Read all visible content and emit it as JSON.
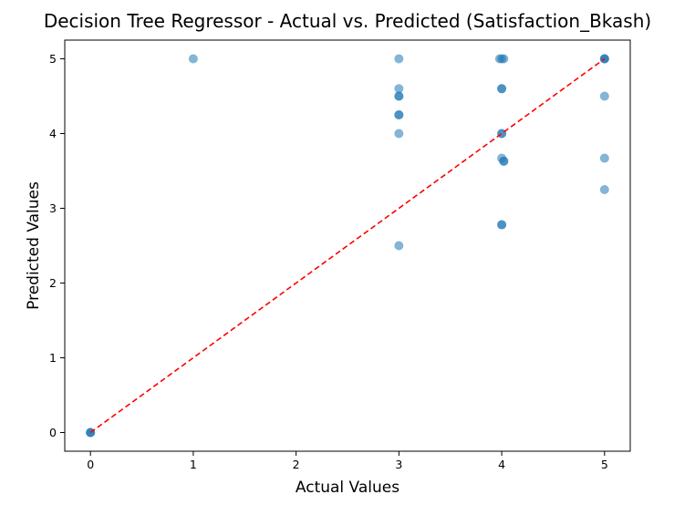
{
  "chart_data": {
    "type": "scatter",
    "title": "Decision Tree Regressor - Actual vs. Predicted (Satisfaction_Bkash)",
    "xlabel": "Actual Values",
    "ylabel": "Predicted Values",
    "xlim": [
      -0.25,
      5.25
    ],
    "ylim": [
      -0.25,
      5.25
    ],
    "xticks": [
      "0",
      "1",
      "2",
      "3",
      "4",
      "5"
    ],
    "yticks": [
      "0",
      "1",
      "2",
      "3",
      "4",
      "5"
    ],
    "grid": false,
    "points": [
      {
        "x": 0,
        "y": 0
      },
      {
        "x": 0,
        "y": 0
      },
      {
        "x": 0,
        "y": 0
      },
      {
        "x": 1,
        "y": 5
      },
      {
        "x": 3,
        "y": 5
      },
      {
        "x": 3,
        "y": 4.6
      },
      {
        "x": 3,
        "y": 4.5
      },
      {
        "x": 3,
        "y": 4.5
      },
      {
        "x": 3,
        "y": 4.25
      },
      {
        "x": 3,
        "y": 4.25
      },
      {
        "x": 3,
        "y": 4
      },
      {
        "x": 3,
        "y": 2.5
      },
      {
        "x": 3.98,
        "y": 5
      },
      {
        "x": 4.02,
        "y": 5
      },
      {
        "x": 4,
        "y": 5
      },
      {
        "x": 4,
        "y": 4.6
      },
      {
        "x": 4,
        "y": 4.6
      },
      {
        "x": 4,
        "y": 4
      },
      {
        "x": 4,
        "y": 4
      },
      {
        "x": 4,
        "y": 3.67
      },
      {
        "x": 4.02,
        "y": 3.63
      },
      {
        "x": 4.02,
        "y": 3.63
      },
      {
        "x": 4,
        "y": 2.78
      },
      {
        "x": 4,
        "y": 2.78
      },
      {
        "x": 5,
        "y": 5
      },
      {
        "x": 5,
        "y": 5
      },
      {
        "x": 5,
        "y": 5
      },
      {
        "x": 5,
        "y": 4.5
      },
      {
        "x": 5,
        "y": 3.67
      },
      {
        "x": 5,
        "y": 3.25
      }
    ],
    "reference_line": {
      "x": [
        0,
        5
      ],
      "y": [
        0,
        5
      ],
      "style": "dashed"
    },
    "colors": {
      "points": "#1f77b4",
      "reference_line": "#ff0000"
    }
  }
}
